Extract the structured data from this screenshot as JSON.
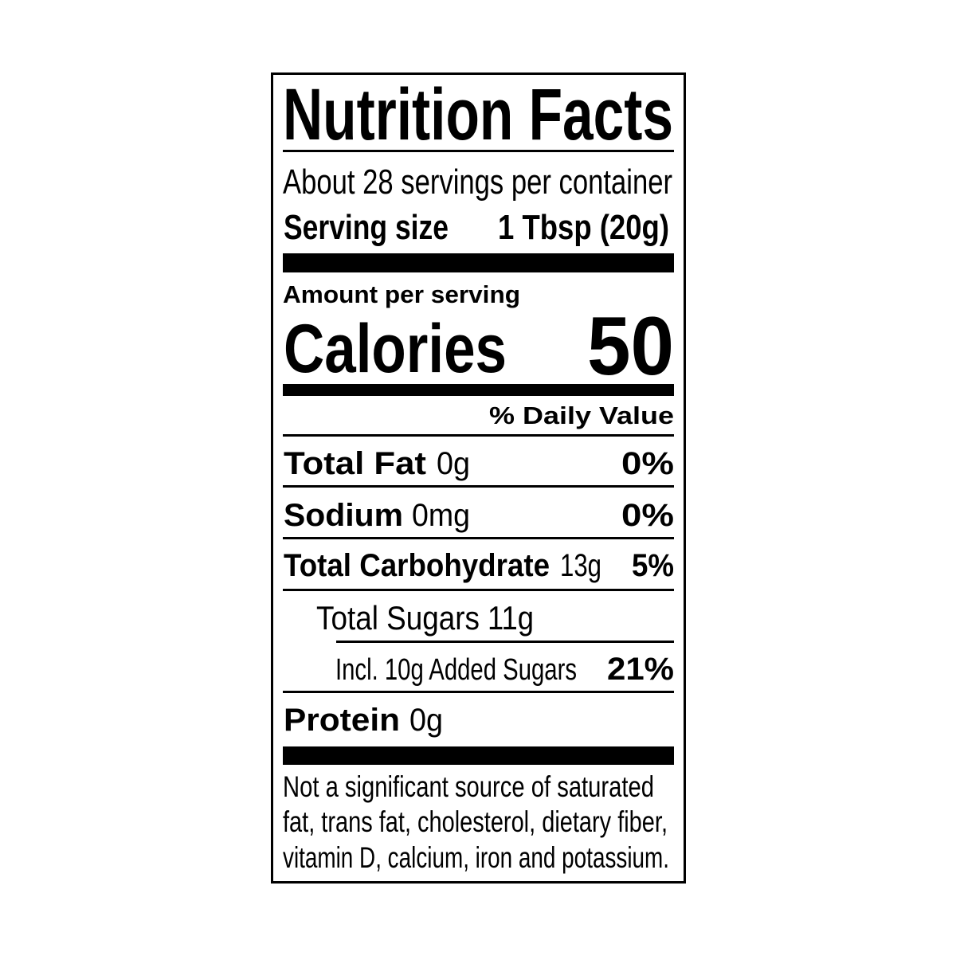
{
  "title": "Nutrition Facts",
  "servings": "About 28 servings per container",
  "serving_size": {
    "label": "Serving size",
    "value": "1 Tbsp (20g)"
  },
  "amount_per_serving": "Amount per serving",
  "calories": {
    "label": "Calories",
    "value": "50"
  },
  "daily_value_header": "% Daily Value",
  "nutrients": [
    {
      "name": "Total Fat",
      "amount": "0g",
      "dv": "0%"
    },
    {
      "name": "Sodium",
      "amount": "0mg",
      "dv": "0%"
    },
    {
      "name": "Total Carbohydrate",
      "amount": "13g",
      "dv": "5%"
    },
    {
      "name": "Total Sugars",
      "amount": "11g"
    },
    {
      "name": "Incl. 10g Added Sugars",
      "dv": "21%"
    },
    {
      "name": "Protein",
      "amount": "0g"
    }
  ],
  "footnote": [
    "Not a significant source of saturated",
    "fat, trans fat, cholesterol, dietary fiber,",
    "vitamin D, calcium, iron and potassium."
  ]
}
